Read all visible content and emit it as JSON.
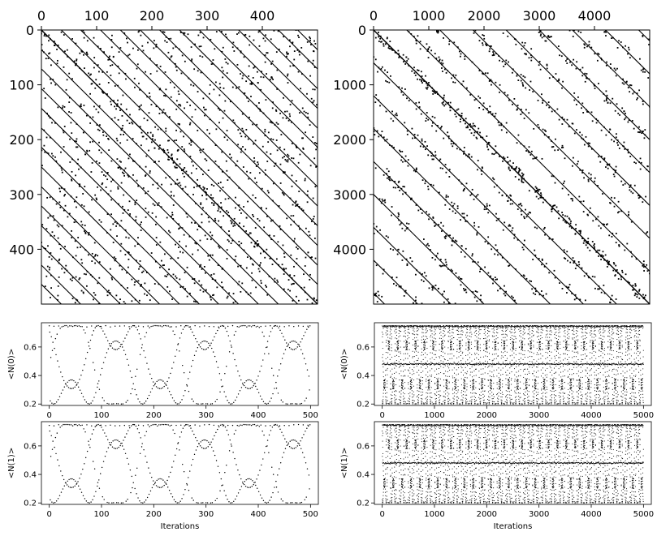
{
  "chart_data": [
    {
      "id": "recurrence-small",
      "type": "scatter",
      "title": "",
      "xlabel": "",
      "ylabel": "",
      "xlim": [
        0,
        500
      ],
      "ylim": [
        500,
        0
      ],
      "xticks": [
        0,
        100,
        200,
        300,
        400
      ],
      "yticks": [
        0,
        100,
        200,
        300,
        400
      ],
      "x_axis_position": "top",
      "y_inverted": true,
      "grid": false,
      "legend": "none",
      "description_of_marks": "binary recurrence matrix drawn as black dots; dominant structure is the main diagonal plus parallel diagonals",
      "diagonal_offsets": [
        0,
        36,
        71,
        107,
        143,
        179,
        214,
        250,
        286,
        321,
        357,
        393,
        429,
        464
      ]
    },
    {
      "id": "recurrence-large",
      "type": "scatter",
      "title": "",
      "xlabel": "",
      "ylabel": "",
      "xlim": [
        0,
        5000
      ],
      "ylim": [
        5000,
        0
      ],
      "xticks": [
        0,
        1000,
        2000,
        3000,
        4000
      ],
      "yticks": [
        0,
        1000,
        2000,
        3000,
        4000
      ],
      "x_axis_position": "top",
      "y_inverted": true,
      "grid": false,
      "legend": "none",
      "description_of_marks": "binary recurrence matrix drawn as black dots; main diagonal plus parallel diagonal bands",
      "diagonal_offsets": [
        0,
        600,
        1200,
        1800,
        2400,
        3000,
        3600,
        4200,
        4800
      ]
    },
    {
      "id": "n0-small",
      "type": "scatter",
      "title": "",
      "xlabel": "",
      "ylabel": "<N(0)>",
      "xlim": [
        -15,
        515
      ],
      "ylim": [
        0.19,
        0.77
      ],
      "xticks": [
        0,
        100,
        200,
        300,
        400,
        500
      ],
      "yticks": [
        0.2,
        0.4,
        0.6
      ],
      "grid": false,
      "legend": "none",
      "point_count": 500,
      "y_range_of_points": [
        0.2,
        0.75
      ]
    },
    {
      "id": "n0-large",
      "type": "scatter",
      "title": "",
      "xlabel": "",
      "ylabel": "<N(0)>",
      "xlim": [
        -150,
        5150
      ],
      "ylim": [
        0.19,
        0.77
      ],
      "xticks": [
        0,
        1000,
        2000,
        3000,
        4000,
        5000
      ],
      "yticks": [
        0.2,
        0.4,
        0.6
      ],
      "grid": false,
      "legend": "none",
      "point_count": 5000,
      "y_range_of_points": [
        0.2,
        0.75
      ],
      "dense_band_y": 0.48
    },
    {
      "id": "n1-small",
      "type": "scatter",
      "title": "",
      "xlabel": "Iterations",
      "ylabel": "<N(1)>",
      "xlim": [
        -15,
        515
      ],
      "ylim": [
        0.19,
        0.77
      ],
      "xticks": [
        0,
        100,
        200,
        300,
        400,
        500
      ],
      "yticks": [
        0.2,
        0.4,
        0.6
      ],
      "grid": false,
      "legend": "none",
      "point_count": 500,
      "y_range_of_points": [
        0.2,
        0.75
      ]
    },
    {
      "id": "n1-large",
      "type": "scatter",
      "title": "",
      "xlabel": "Iterations",
      "ylabel": "<N(1)>",
      "xlim": [
        -150,
        5150
      ],
      "ylim": [
        0.19,
        0.77
      ],
      "xticks": [
        0,
        1000,
        2000,
        3000,
        4000,
        5000
      ],
      "yticks": [
        0.2,
        0.4,
        0.6
      ],
      "grid": false,
      "legend": "none",
      "point_count": 5000,
      "y_range_of_points": [
        0.2,
        0.75
      ],
      "dense_band_y": 0.48
    }
  ],
  "colors": {
    "marks": "#000000",
    "background": "#ffffff",
    "axes": "#000000"
  }
}
